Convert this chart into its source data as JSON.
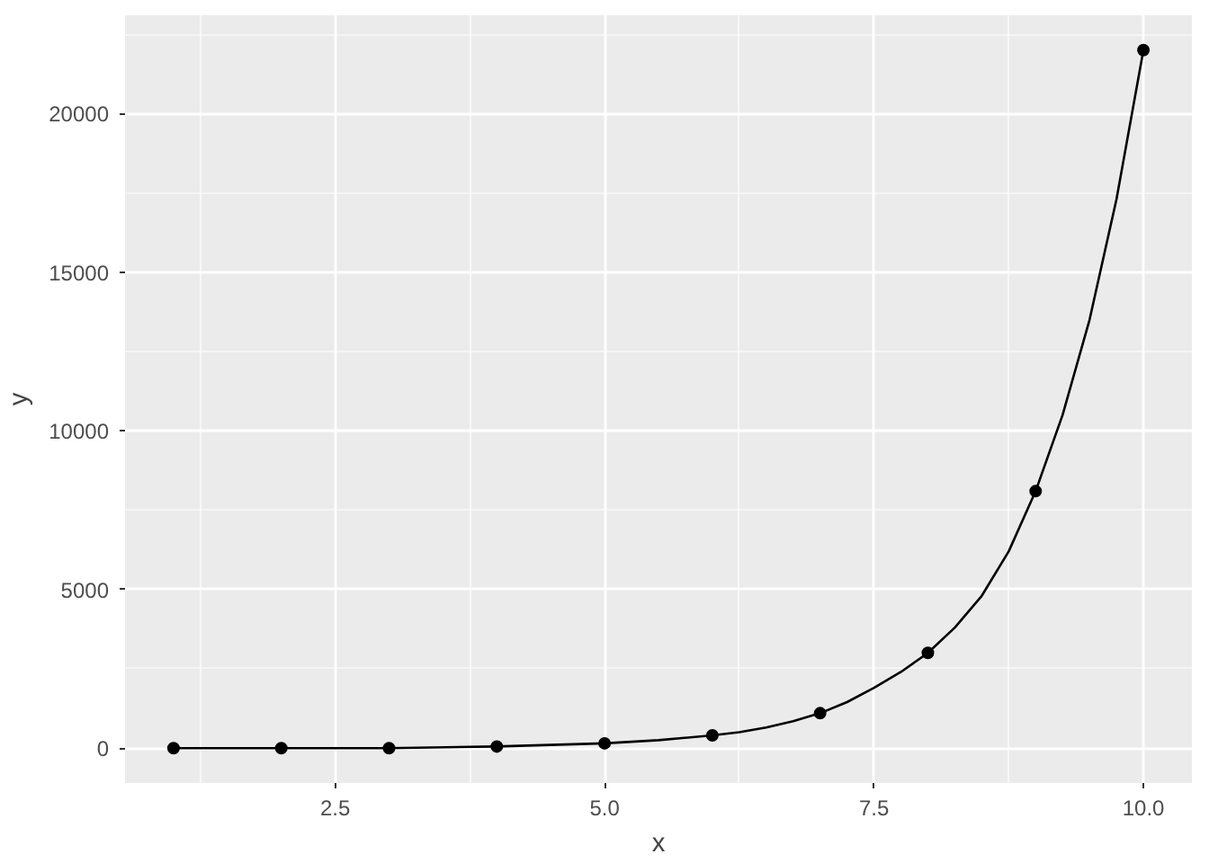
{
  "chart_data": {
    "type": "scatter",
    "xlabel": "x",
    "ylabel": "y",
    "x": [
      1,
      2,
      3,
      4,
      5,
      6,
      7,
      8,
      9,
      10
    ],
    "series": [
      {
        "color": "#000000",
        "marker": "circle",
        "values": [
          0,
          0,
          0,
          50,
          150,
          400,
          1100,
          3000,
          8100,
          22000
        ]
      },
      {
        "type": "line",
        "color": "#000000",
        "marker": "none",
        "x": [
          1,
          2,
          3,
          4,
          4.5,
          5,
          5.5,
          6,
          6.25,
          6.5,
          6.75,
          7,
          7.25,
          7.5,
          7.75,
          8,
          8.25,
          8.5,
          8.75,
          9,
          9.25,
          9.5,
          9.75,
          10
        ],
        "values": [
          0,
          0,
          0,
          50,
          100,
          150,
          250,
          400,
          500,
          650,
          850,
          1100,
          1450,
          1900,
          2400,
          3000,
          3800,
          4800,
          6200,
          8100,
          10500,
          13500,
          17300,
          22000
        ]
      }
    ],
    "line_style": "solid",
    "grid": true,
    "xlim": [
      0.55,
      10.45
    ],
    "xticks": [
      {
        "value": 2.5,
        "label": "2.5"
      },
      {
        "value": 5,
        "label": "5.0"
      },
      {
        "value": 7.5,
        "label": "7.5"
      },
      {
        "value": 10,
        "label": "10.0"
      }
    ],
    "ylim": [
      -1100,
      23100
    ],
    "yticks": [
      0,
      5000,
      10000,
      15000,
      20000
    ]
  }
}
